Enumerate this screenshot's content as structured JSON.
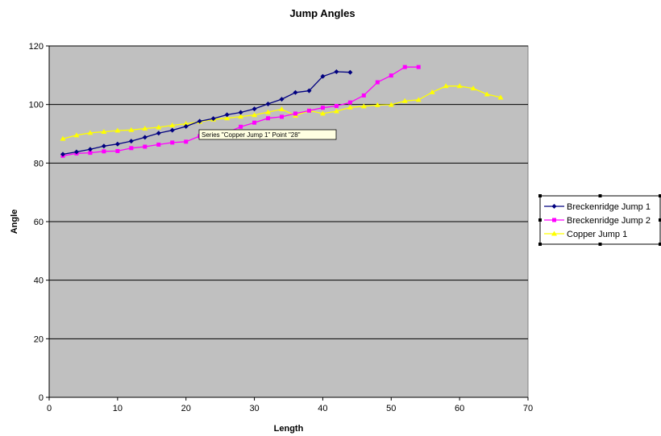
{
  "chart_data": {
    "type": "line",
    "title": "Jump Angles",
    "xlabel": "Length",
    "ylabel": "Angle",
    "xlim": [
      0,
      70
    ],
    "ylim": [
      0,
      120
    ],
    "xticks": [
      0,
      10,
      20,
      30,
      40,
      50,
      60,
      70
    ],
    "yticks": [
      0,
      20,
      40,
      60,
      80,
      100,
      120
    ],
    "grid": "horizontal",
    "plot_background": "#c0c0c0",
    "legend_position": "right",
    "tooltip": "Series \"Copper Jump 1\" Point \"28\"",
    "series": [
      {
        "name": "Breckenridge Jump 1",
        "color": "#000080",
        "marker": "diamond",
        "x": [
          2,
          4,
          6,
          8,
          10,
          12,
          14,
          16,
          18,
          20,
          22,
          24,
          26,
          28,
          30,
          32,
          34,
          36,
          38,
          40,
          42,
          44
        ],
        "y": [
          83,
          83.8,
          84.7,
          85.8,
          86.5,
          87.5,
          88.8,
          90.2,
          91.2,
          92.5,
          94.3,
          95.2,
          96.5,
          97.3,
          98.5,
          100.2,
          101.8,
          104.1,
          104.7,
          109.6,
          111.2,
          111
        ]
      },
      {
        "name": "Breckenridge Jump 2",
        "color": "#ff00ff",
        "marker": "square",
        "x": [
          2,
          4,
          6,
          8,
          10,
          12,
          14,
          16,
          18,
          20,
          22,
          24,
          26,
          28,
          30,
          32,
          34,
          36,
          38,
          40,
          42,
          44,
          46,
          48,
          50,
          52,
          54
        ],
        "y": [
          82.5,
          83.3,
          83.5,
          84,
          84.1,
          85.1,
          85.6,
          86.3,
          87,
          87.3,
          89.2,
          89.5,
          90.4,
          92.4,
          93.8,
          95.3,
          95.8,
          96.9,
          97.9,
          98.9,
          99.5,
          100.7,
          103.1,
          107.6,
          109.9,
          112.8,
          112.8
        ]
      },
      {
        "name": "Copper Jump 1",
        "color": "#ffff00",
        "marker": "triangle",
        "x": [
          2,
          4,
          6,
          8,
          10,
          12,
          14,
          16,
          18,
          20,
          22,
          24,
          26,
          28,
          30,
          32,
          34,
          36,
          38,
          40,
          42,
          44,
          46,
          48,
          50,
          52,
          54,
          56,
          58,
          60,
          62,
          64,
          66
        ],
        "y": [
          88.3,
          89.5,
          90.3,
          90.7,
          91.1,
          91.3,
          91.8,
          92.2,
          92.9,
          93.4,
          94.1,
          94.9,
          95.3,
          95.9,
          96.4,
          97.4,
          98.4,
          96.2,
          97.9,
          96.9,
          97.7,
          99,
          99.4,
          99.8,
          99.9,
          101.2,
          101.6,
          104.2,
          106.3,
          106.3,
          105.5,
          103.5,
          102.4
        ]
      }
    ]
  }
}
